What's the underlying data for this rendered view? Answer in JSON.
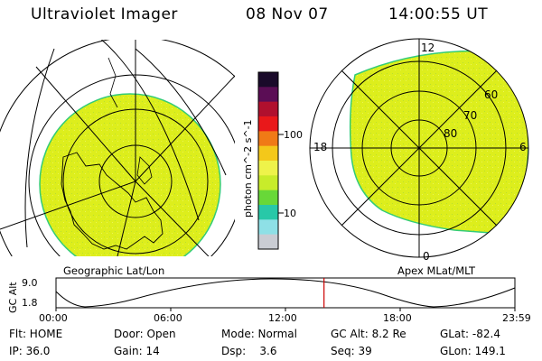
{
  "header": {
    "title": "Ultraviolet Imager",
    "date": "08 Nov 07",
    "time": "14:00:55 UT"
  },
  "colors": {
    "fill": "#ddee1c",
    "speckle": "#33cc77",
    "line": "#000000",
    "marker": "#cc0000"
  },
  "colorbar": {
    "label": "photon cm^-2 s^-1",
    "ticks": [
      "100",
      "10"
    ],
    "stops": [
      "#1a0a2a",
      "#5b0d55",
      "#b0102e",
      "#e9181a",
      "#f07a16",
      "#f4c81a",
      "#eef34a",
      "#c8ec2a",
      "#68d838",
      "#28c8a8",
      "#8ee0e6",
      "#c9ccd3"
    ]
  },
  "geo_panel": {
    "caption": "Geographic Lat/Lon"
  },
  "mlt_panel": {
    "caption": "Apex MLat/MLT",
    "hour_labels": {
      "noon": "12",
      "dusk": "18",
      "dawn": "6",
      "midnight": "0"
    },
    "lat_labels": [
      "60",
      "70",
      "80"
    ]
  },
  "altitude_plot": {
    "ylabel": "GC Alt",
    "yticks": [
      "9.0",
      "1.8"
    ],
    "xticks": [
      "00:00",
      "06:00",
      "12:00",
      "18:00",
      "23:59"
    ],
    "marker_time_fraction": 0.584
  },
  "footer": {
    "rows": [
      [
        "Flt: HOME",
        "Door: Open",
        "Mode: Normal",
        "GC Alt: 8.2 Re",
        "GLat: -82.4"
      ],
      [
        "IP: 36.0",
        "Gain: 14",
        "Dsp:    3.6",
        "Seq: 39",
        "GLon: 149.1"
      ]
    ]
  }
}
